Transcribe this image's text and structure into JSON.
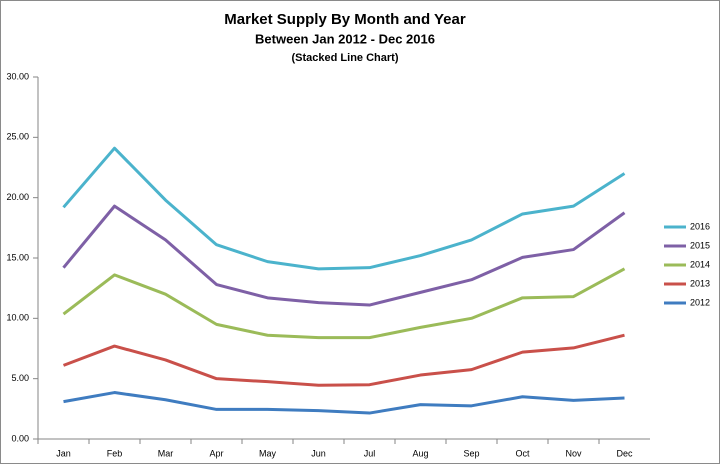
{
  "chart_data": {
    "type": "stacked-line",
    "title": "Market Supply By Month and Year",
    "subtitle": "Between Jan 2012 - Dec 2016",
    "annotation": "(Stacked Line Chart)",
    "categories": [
      "Jan",
      "Feb",
      "Mar",
      "Apr",
      "May",
      "Jun",
      "Jul",
      "Aug",
      "Sep",
      "Oct",
      "Nov",
      "Dec"
    ],
    "series": [
      {
        "name": "2012",
        "color": "#3f7cc0",
        "values": [
          3.1,
          3.85,
          3.25,
          2.45,
          2.45,
          2.35,
          2.15,
          2.85,
          2.75,
          3.5,
          3.2,
          3.4
        ]
      },
      {
        "name": "2013",
        "color": "#c9504a",
        "values": [
          3.0,
          3.85,
          3.3,
          2.55,
          2.3,
          2.1,
          2.35,
          2.45,
          3.0,
          3.7,
          4.35,
          5.2
        ]
      },
      {
        "name": "2014",
        "color": "#9bbb59",
        "values": [
          4.25,
          5.9,
          5.45,
          4.5,
          3.85,
          3.95,
          3.9,
          3.95,
          4.25,
          4.5,
          4.25,
          5.5
        ]
      },
      {
        "name": "2015",
        "color": "#7e60a6",
        "values": [
          3.85,
          5.7,
          4.5,
          3.3,
          3.1,
          2.9,
          2.7,
          2.9,
          3.2,
          3.35,
          3.9,
          4.65
        ]
      },
      {
        "name": "2016",
        "color": "#4bb3cc",
        "values": [
          5.0,
          4.8,
          3.3,
          3.3,
          3.0,
          2.8,
          3.1,
          3.05,
          3.3,
          3.6,
          3.6,
          3.25
        ]
      }
    ],
    "ylim": [
      0,
      30
    ],
    "yticks": [
      {
        "value": 0,
        "label": "0.00"
      },
      {
        "value": 5,
        "label": "5.00"
      },
      {
        "value": 10,
        "label": "10.00"
      },
      {
        "value": 15,
        "label": "15.00"
      },
      {
        "value": 20,
        "label": "20.00"
      },
      {
        "value": 25,
        "label": "25.00"
      },
      {
        "value": 30,
        "label": "30.00"
      }
    ],
    "grid": false,
    "legend": "right"
  }
}
